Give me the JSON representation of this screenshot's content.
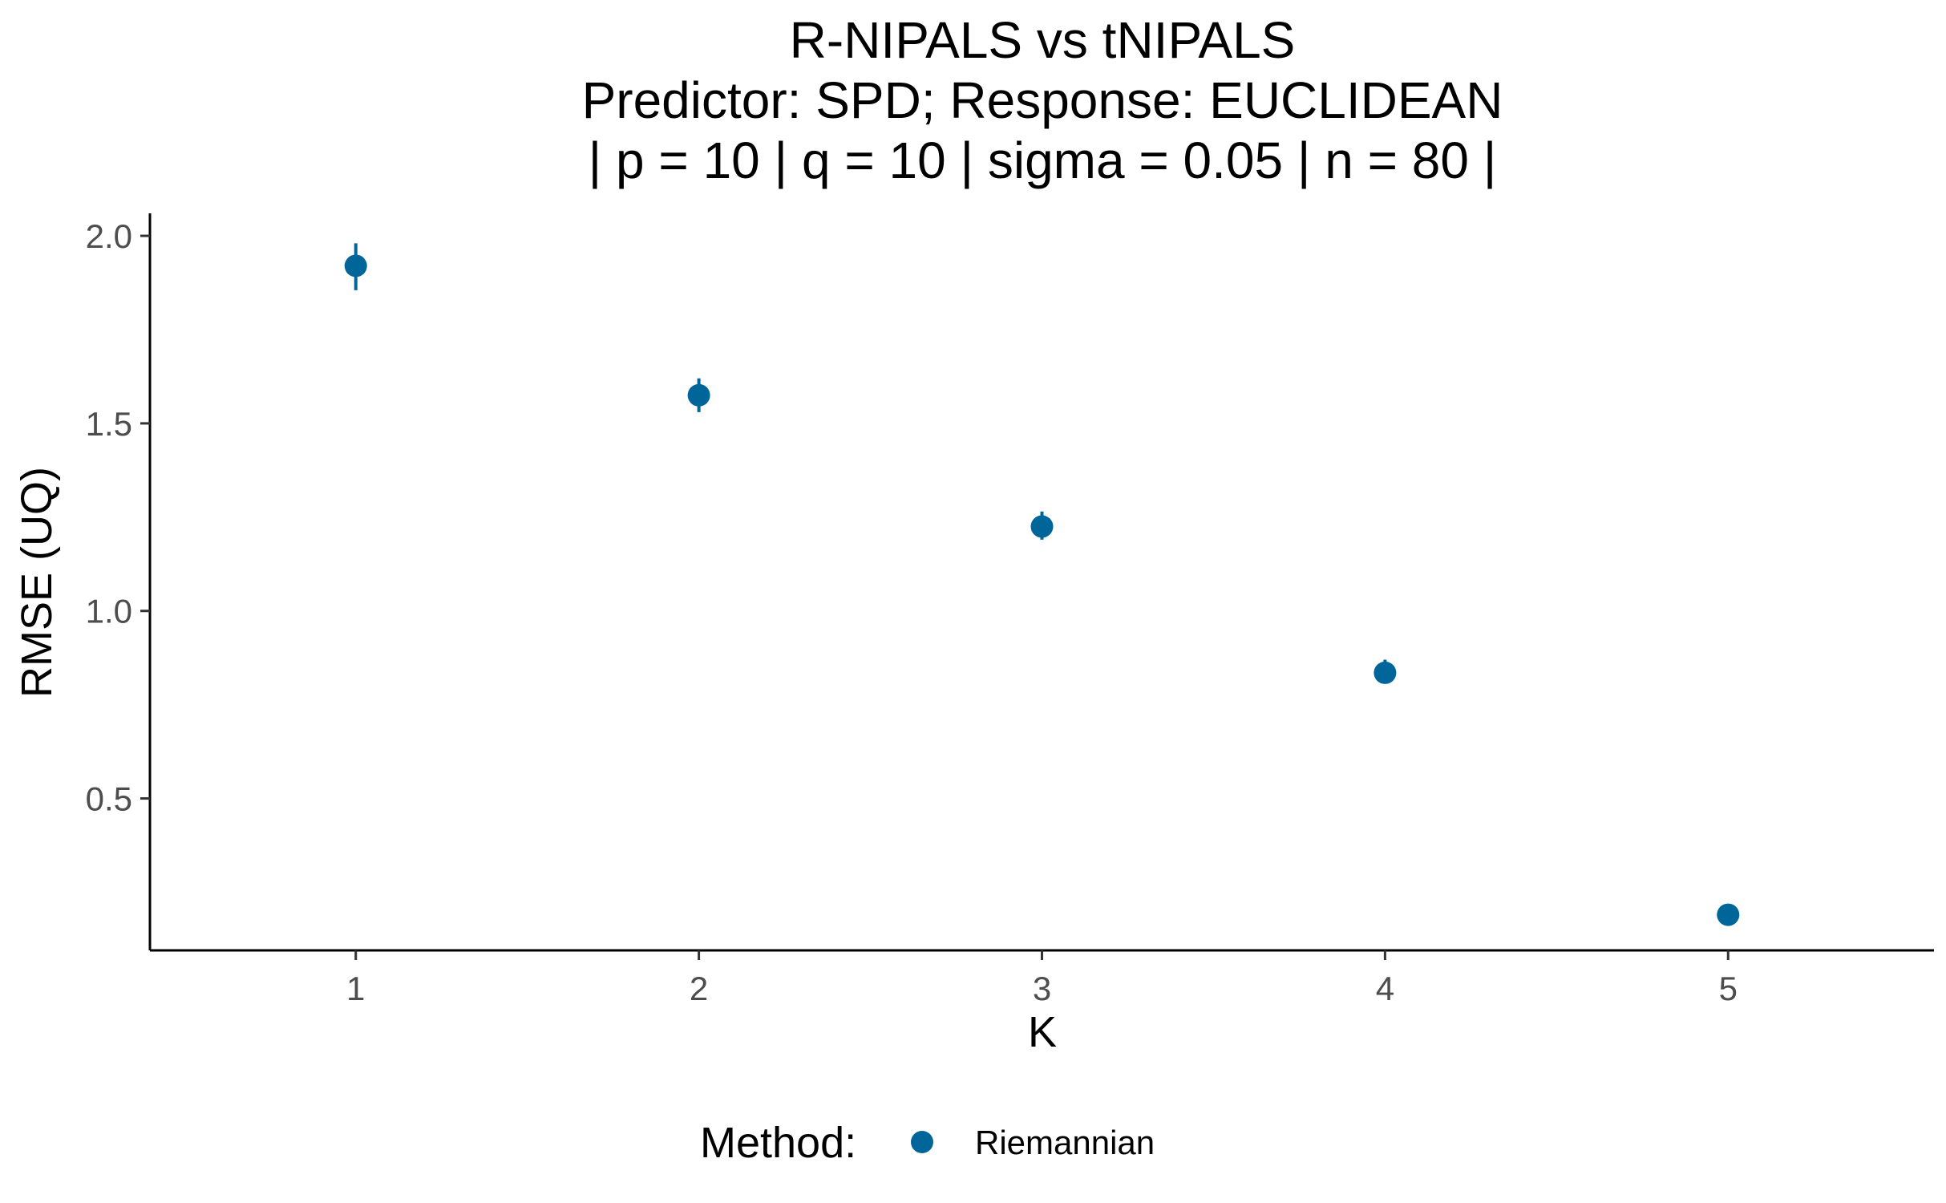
{
  "chart_data": {
    "type": "scatter",
    "title": [
      "R-NIPALS vs tNIPALS",
      "Predictor: SPD; Response: EUCLIDEAN",
      "| p = 10 | q = 10 | sigma = 0.05 | n = 80 |"
    ],
    "xlabel": "K",
    "ylabel": "RMSE (UQ)",
    "x_ticks": [
      1,
      2,
      3,
      4,
      5
    ],
    "y_ticks": [
      0.5,
      1.0,
      1.5,
      2.0
    ],
    "y_tick_labels": [
      "0.5",
      "1.0",
      "1.5",
      "2.0"
    ],
    "x_tick_labels": [
      "1",
      "2",
      "3",
      "4",
      "5"
    ],
    "xlim": [
      0.4,
      5.6
    ],
    "ylim": [
      0.095,
      2.06
    ],
    "grid": false,
    "legend": {
      "title": "Method:",
      "position": "bottom"
    },
    "series": [
      {
        "name": "Riemannian",
        "color": "#006699",
        "x": [
          1,
          2,
          3,
          4,
          5
        ],
        "y": [
          1.92,
          1.575,
          1.225,
          0.835,
          0.19
        ],
        "err_low": [
          1.855,
          1.53,
          1.19,
          0.81,
          0.185
        ],
        "err_high": [
          1.98,
          1.62,
          1.265,
          0.87,
          0.195
        ]
      }
    ]
  }
}
